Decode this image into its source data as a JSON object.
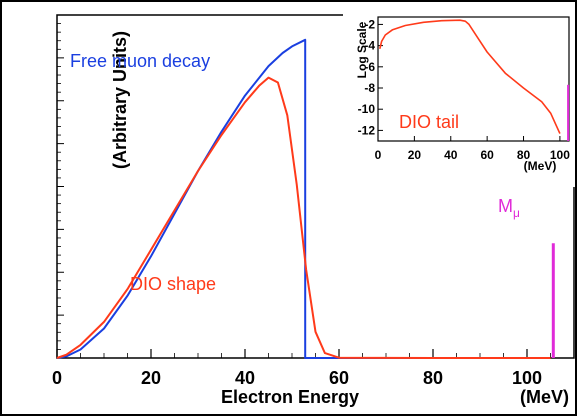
{
  "chart_data": [
    {
      "type": "line",
      "xlabel": "Electron Energy",
      "ylabel": "(Arbitrary Units)",
      "xlim": [
        0,
        110
      ],
      "ylim": [
        0,
        1
      ],
      "x_ticks": [
        0,
        20,
        40,
        60,
        80,
        100
      ],
      "x_tick_labels": [
        "0",
        "20",
        "40",
        "60",
        "80",
        "100"
      ],
      "x_unit_label": "(MeV)",
      "y_tick_labels_shown": false,
      "grid": false,
      "series": [
        {
          "name": "Free muon decay",
          "color": "#1a3fe0",
          "x": [
            0,
            2,
            5,
            10,
            15,
            20,
            25,
            30,
            35,
            40,
            45,
            48,
            50,
            52.8,
            52.8,
            53,
            60,
            80,
            105
          ],
          "y": [
            0,
            0.005,
            0.026,
            0.09,
            0.19,
            0.31,
            0.44,
            0.57,
            0.69,
            0.8,
            0.89,
            0.93,
            0.95,
            0.97,
            0,
            0,
            0,
            0,
            0
          ]
        },
        {
          "name": "DIO shape",
          "color": "#ff3a1a",
          "x": [
            0,
            2,
            5,
            10,
            15,
            20,
            25,
            30,
            35,
            40,
            43,
            45,
            47,
            49,
            51,
            53,
            55,
            57,
            60,
            80,
            105
          ],
          "y": [
            0,
            0.01,
            0.04,
            0.11,
            0.21,
            0.33,
            0.45,
            0.57,
            0.68,
            0.78,
            0.83,
            0.855,
            0.84,
            0.74,
            0.53,
            0.27,
            0.08,
            0.015,
            0.001,
            0,
            0
          ]
        },
        {
          "name": "Mμ",
          "color": "#e02ad8",
          "x": [
            105.6,
            105.6
          ],
          "y": [
            0,
            0.35
          ]
        }
      ],
      "annotations": [
        {
          "text": "Free muon decay",
          "color": "#1a3fe0"
        },
        {
          "text": "DIO shape",
          "color": "#ff3a1a"
        },
        {
          "text": "M",
          "sub": "μ",
          "color": "#e02ad8"
        }
      ]
    },
    {
      "type": "line",
      "xlabel": "",
      "ylabel": "Log Scale",
      "xlim": [
        0,
        105
      ],
      "ylim": [
        -13,
        -1.3
      ],
      "x_ticks": [
        0,
        20,
        40,
        60,
        80,
        100
      ],
      "x_tick_labels": [
        "0",
        "20",
        "40",
        "60",
        "80",
        "100"
      ],
      "x_unit_label": "(MeV)",
      "y_ticks": [
        -2,
        -4,
        -6,
        -8,
        -10,
        -12
      ],
      "y_tick_labels": [
        "-2",
        "-4",
        "-6",
        "-8",
        "-10",
        "-12"
      ],
      "grid": false,
      "series": [
        {
          "name": "DIO tail",
          "color": "#ff3a1a",
          "x": [
            1,
            2,
            4,
            8,
            15,
            25,
            35,
            45,
            48,
            50,
            55,
            60,
            70,
            80,
            90,
            95,
            100
          ],
          "y": [
            -4.3,
            -3.6,
            -3.0,
            -2.5,
            -2.1,
            -1.8,
            -1.65,
            -1.6,
            -1.7,
            -2.0,
            -3.3,
            -4.6,
            -6.6,
            -8.0,
            -9.3,
            -10.4,
            -12.3
          ]
        },
        {
          "name": "Mμ",
          "color": "#e02ad8",
          "x": [
            104.5,
            104.5
          ],
          "y": [
            -7.7,
            -13
          ]
        }
      ],
      "annotations": [
        {
          "text": "DIO tail",
          "color": "#ff3a1a"
        }
      ]
    }
  ]
}
